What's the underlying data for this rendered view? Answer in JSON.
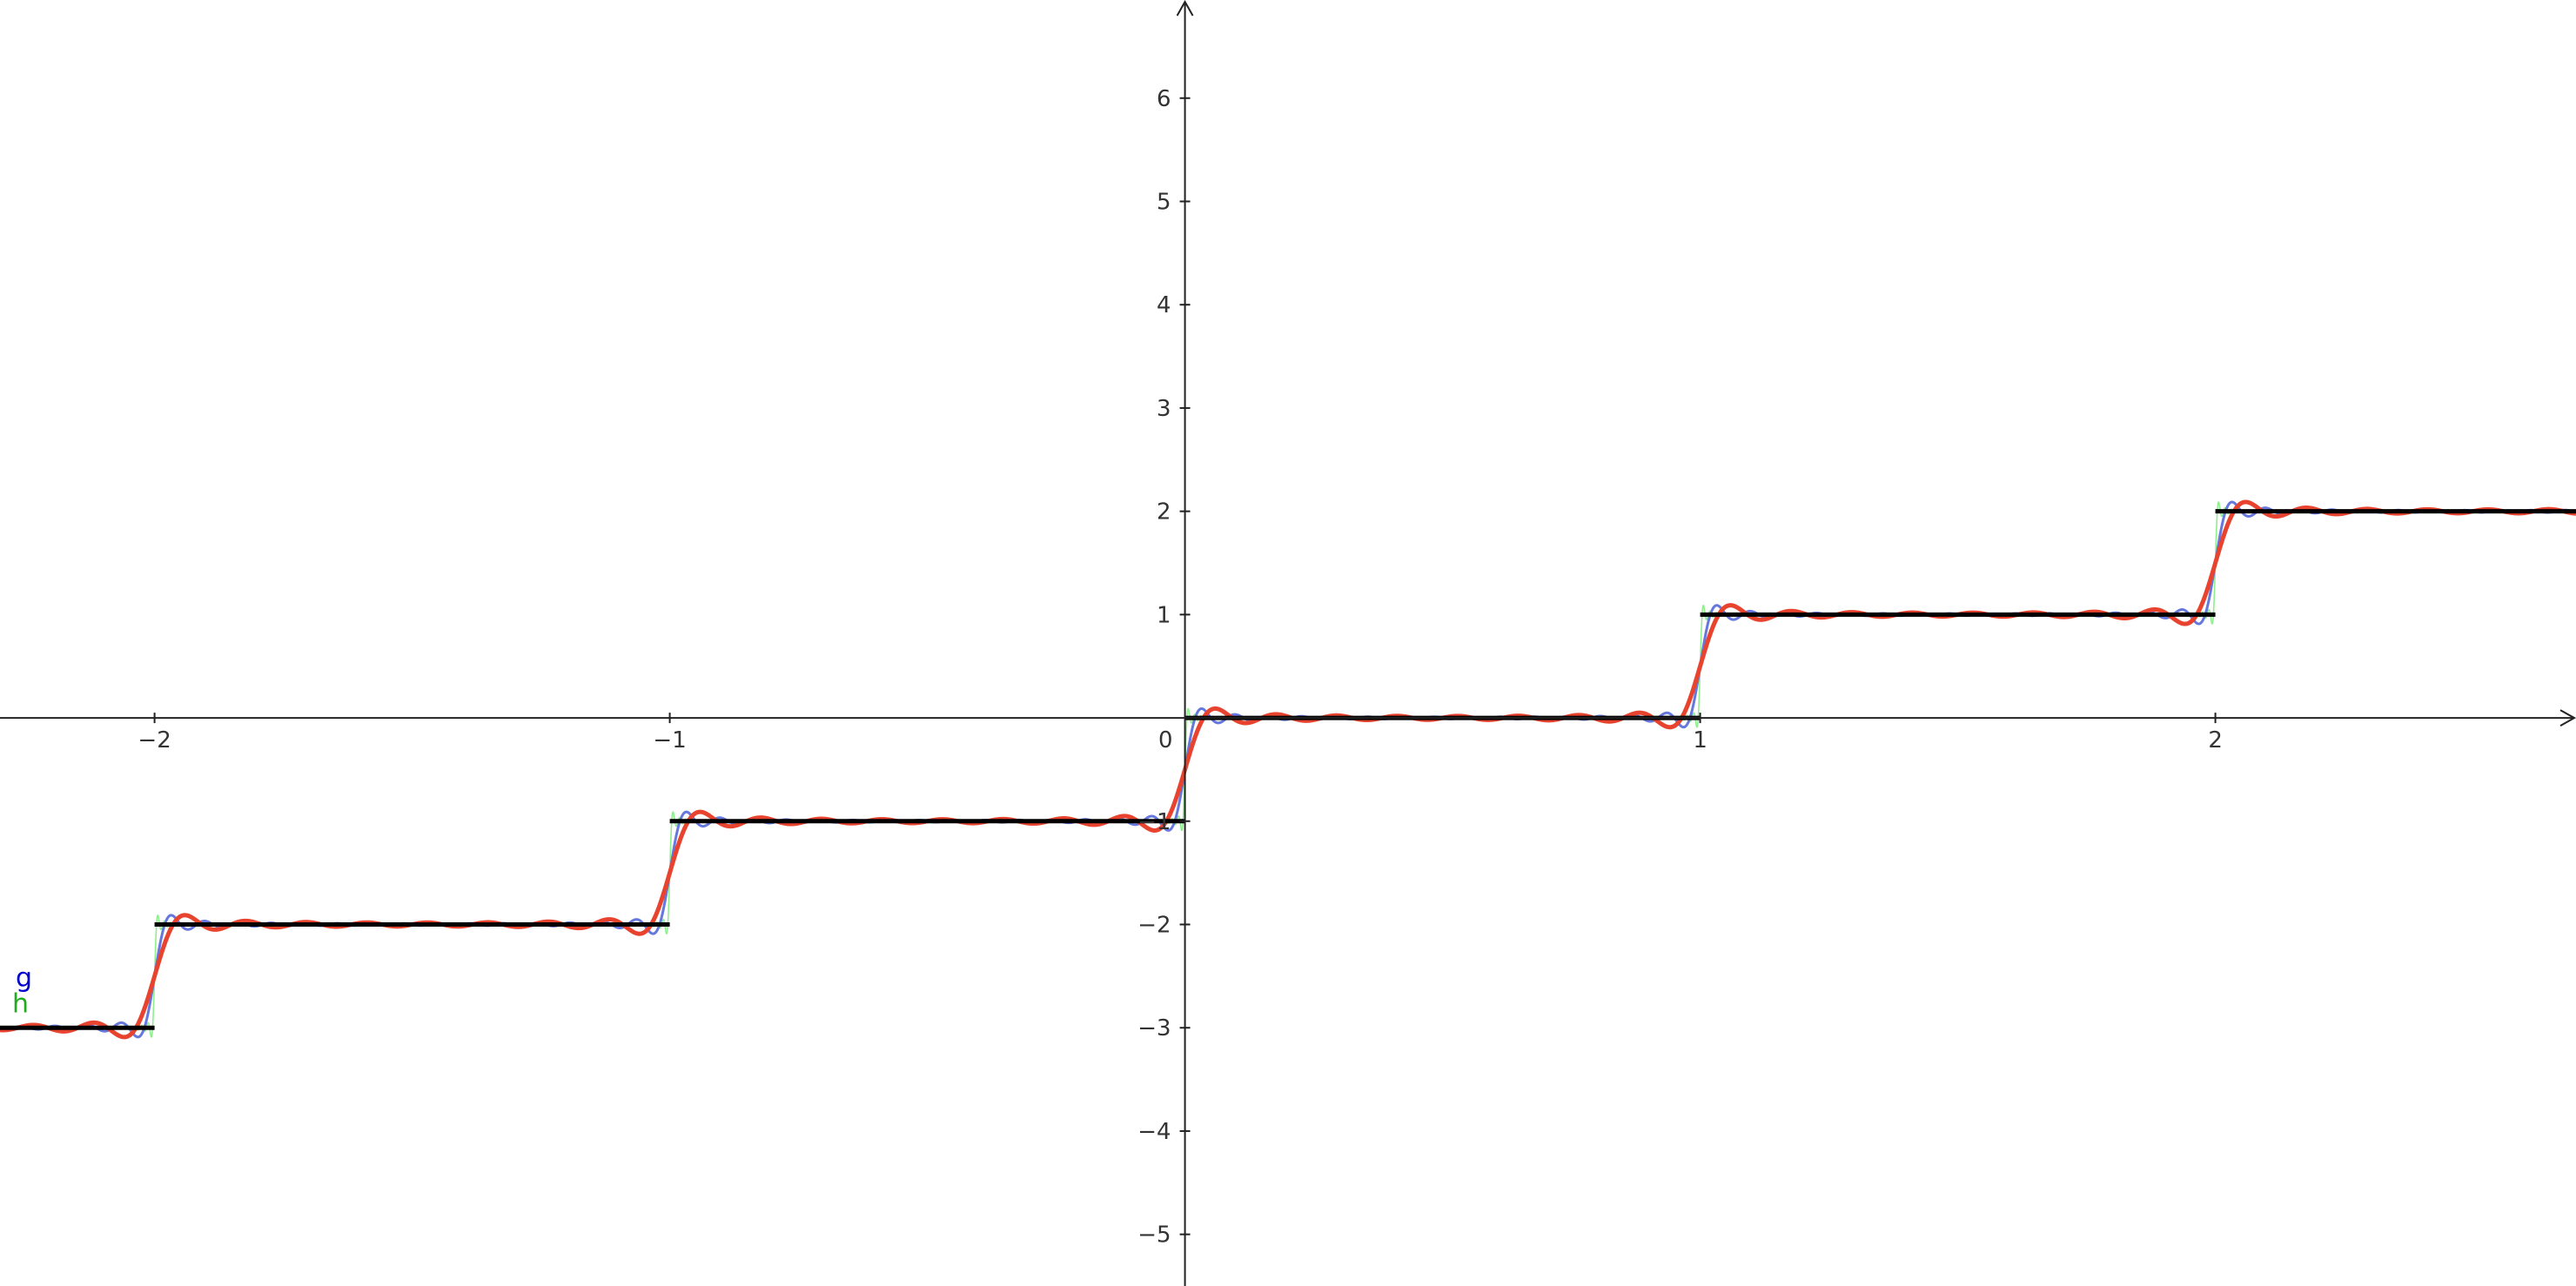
{
  "chart_data": {
    "type": "line",
    "title": "",
    "xlabel": "",
    "ylabel": "",
    "xlim": [
      -2.3,
      2.7
    ],
    "ylim": [
      -5.5,
      6.95
    ],
    "grid": false,
    "x_ticks": [
      {
        "value": -2,
        "label": "−2"
      },
      {
        "value": -1,
        "label": "−1"
      },
      {
        "value": 1,
        "label": "1"
      },
      {
        "value": 2,
        "label": "2"
      }
    ],
    "y_ticks": [
      {
        "value": -5,
        "label": "−5"
      },
      {
        "value": -4,
        "label": "−4"
      },
      {
        "value": -3,
        "label": "−3"
      },
      {
        "value": -2,
        "label": "−2"
      },
      {
        "value": -1,
        "label": "−1"
      },
      {
        "value": 1,
        "label": "1"
      },
      {
        "value": 2,
        "label": "2"
      },
      {
        "value": 3,
        "label": "3"
      },
      {
        "value": 4,
        "label": "4"
      },
      {
        "value": 5,
        "label": "5"
      },
      {
        "value": 6,
        "label": "6"
      }
    ],
    "origin_label": "0",
    "step_function": {
      "color": "#000000",
      "segments": [
        {
          "x_start": -2.3,
          "x_end": -2,
          "y": -3
        },
        {
          "x_start": -2,
          "x_end": -1,
          "y": -2
        },
        {
          "x_start": -1,
          "x_end": 0,
          "y": -1
        },
        {
          "x_start": 0,
          "x_end": 1,
          "y": 0
        },
        {
          "x_start": 1,
          "x_end": 2,
          "y": 1
        },
        {
          "x_start": 2,
          "x_end": 2.7,
          "y": 2
        }
      ]
    },
    "series": [
      {
        "color": "#90ee90",
        "harmonics": 80,
        "stroke": "thin"
      },
      {
        "color": "#6677dd",
        "harmonics": 15,
        "stroke": "medium"
      },
      {
        "color": "#e8432e",
        "harmonics": 8,
        "stroke": "thick"
      }
    ],
    "curve_labels": [
      {
        "text": "g",
        "color": "#0000cc"
      },
      {
        "text": "h",
        "color": "#22aa22"
      }
    ]
  }
}
